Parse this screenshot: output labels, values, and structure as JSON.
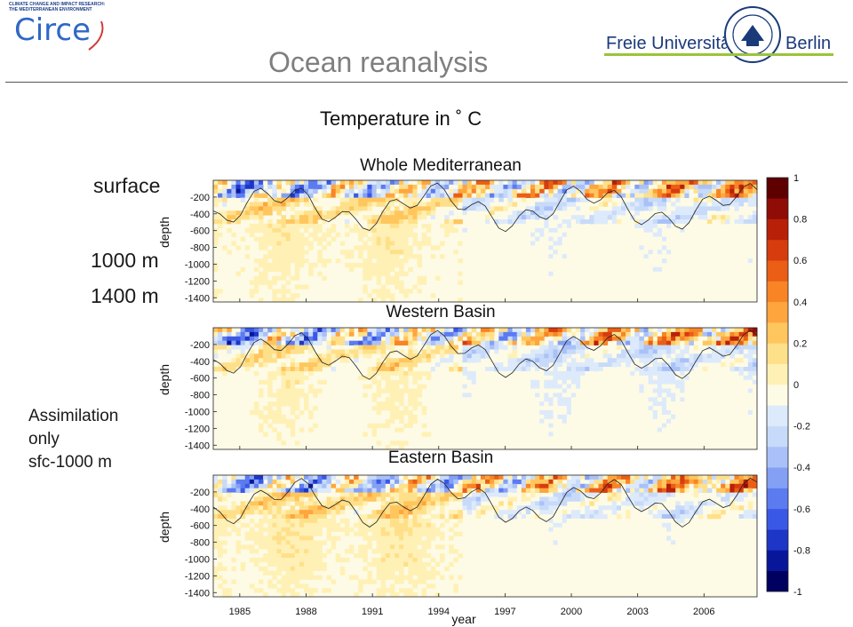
{
  "header": {
    "circe_tagline_1": "CLIMATE CHANGE AND IMPACT RESEARCH:",
    "circe_tagline_2": "THE MEDITERRANEAN ENVIRONMENT",
    "circe_name": "Circe",
    "fu_left": "Freie Universität",
    "fu_right": "Berlin",
    "page_title": "Ocean reanalysis",
    "accent_blue": "#2f67c6",
    "fu_green": "#9ac43a"
  },
  "labels": {
    "surface": "surface",
    "depth_1000": "1000 m",
    "depth_1400": "1400 m",
    "note": [
      "Assimilation",
      "only",
      "sfc-1000 m"
    ]
  },
  "chart_data": {
    "type": "heatmap",
    "title": "Temperature in ˚ C",
    "xlabel": "year",
    "ylabel": "depth",
    "x_ticks": [
      "1985",
      "1988",
      "1991",
      "1994",
      "1997",
      "2000",
      "2003",
      "2006"
    ],
    "y_ticks": [
      "-200",
      "-400",
      "-600",
      "-800",
      "-1000",
      "-1200",
      "-1400"
    ],
    "xlim": [
      1983.8,
      2008.4
    ],
    "ylim": [
      -1450,
      0
    ],
    "panels": [
      {
        "name": "Whole Mediterranean",
        "seed": 1,
        "offset": 0.0
      },
      {
        "name": "Western Basin",
        "seed": 7,
        "offset": -0.02
      },
      {
        "name": "Eastern Basin",
        "seed": 13,
        "offset": 0.02
      }
    ],
    "colorbar": {
      "min": -1,
      "max": 1,
      "tick_labels": [
        "1",
        "0.8",
        "0.6",
        "0.4",
        "0.2",
        "0",
        "-0.2",
        "-0.4",
        "-0.6",
        "-0.8",
        "-1"
      ],
      "colors": [
        "#000060",
        "#08179a",
        "#1d36c8",
        "#3a58e6",
        "#5c7bf0",
        "#84a0f5",
        "#a9c1f8",
        "#c7daf9",
        "#ddeafb",
        "#fdfbe6",
        "#fff1b5",
        "#ffe08a",
        "#ffc65e",
        "#ffa53e",
        "#f88426",
        "#ea5e16",
        "#d63c0d",
        "#b82008",
        "#900c06",
        "#5e0000"
      ]
    }
  }
}
